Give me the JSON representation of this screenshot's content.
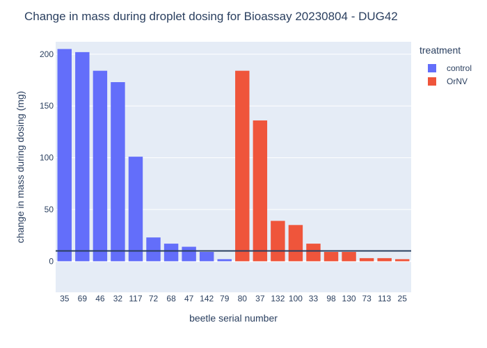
{
  "chart_data": {
    "type": "bar",
    "title": "Change in mass during droplet dosing for Bioassay 20230804 - DUG42",
    "xlabel": "beetle serial number",
    "ylabel": "change in mass during dosing (mg)",
    "ylim": [
      -30,
      212
    ],
    "yticks": [
      0,
      50,
      100,
      150,
      200
    ],
    "grid": true,
    "legend_title": "treatment",
    "legend_position": "right",
    "reference_line_y": 10,
    "categories": [
      "35",
      "69",
      "46",
      "32",
      "117",
      "72",
      "68",
      "47",
      "142",
      "79",
      "80",
      "37",
      "132",
      "100",
      "33",
      "98",
      "130",
      "73",
      "113",
      "25"
    ],
    "series": [
      {
        "name": "control",
        "color": "#636efa",
        "values": [
          205,
          202,
          184,
          173,
          101,
          23,
          17,
          14,
          9,
          2,
          null,
          null,
          null,
          null,
          null,
          null,
          null,
          null,
          null,
          null
        ]
      },
      {
        "name": "OrNV",
        "color": "#ef553b",
        "values": [
          null,
          null,
          null,
          null,
          null,
          null,
          null,
          null,
          null,
          null,
          184,
          136,
          39,
          35,
          17,
          9,
          9,
          3,
          3,
          2
        ]
      }
    ]
  }
}
